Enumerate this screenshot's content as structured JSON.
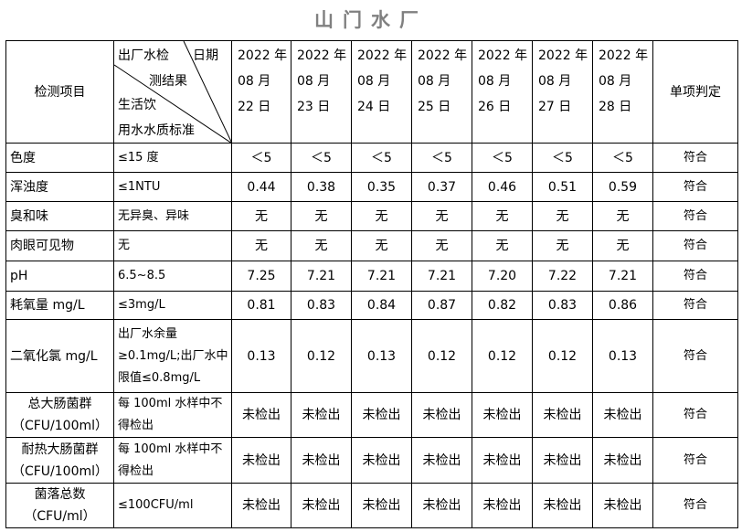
{
  "title": "山门水厂",
  "header": {
    "item_col": "检测项目",
    "diag_top_left": "出厂水检",
    "diag_top_right": "日期",
    "diag_mid": "测结果",
    "diag_bottom1": "生活饮",
    "diag_bottom2": "用水水质标准",
    "dates": [
      {
        "y": "2022 年",
        "m": "08 月",
        "d": "22 日"
      },
      {
        "y": "2022 年",
        "m": "08 月",
        "d": "23 日"
      },
      {
        "y": "2022 年",
        "m": "08 月",
        "d": "24 日"
      },
      {
        "y": "2022 年",
        "m": "08 月",
        "d": "25 日"
      },
      {
        "y": "2022 年",
        "m": "08 月",
        "d": "26 日"
      },
      {
        "y": "2022 年",
        "m": "08 月",
        "d": "27 日"
      },
      {
        "y": "2022 年",
        "m": "08 月",
        "d": "28 日"
      }
    ],
    "verdict_col": "单项判定"
  },
  "rows": [
    {
      "item": "色度",
      "std": "≤15 度",
      "values": [
        "＜5",
        "＜5",
        "＜5",
        "＜5",
        "＜5",
        "＜5",
        "＜5"
      ],
      "verdict": "符合"
    },
    {
      "item": "浑浊度",
      "std": "≤1NTU",
      "values": [
        "0.44",
        "0.38",
        "0.35",
        "0.37",
        "0.46",
        "0.51",
        "0.59"
      ],
      "verdict": "符合"
    },
    {
      "item": "臭和味",
      "std": "无异臭、异味",
      "values": [
        "无",
        "无",
        "无",
        "无",
        "无",
        "无",
        "无"
      ],
      "verdict": "符合"
    },
    {
      "item": "肉眼可见物",
      "std": "无",
      "values": [
        "无",
        "无",
        "无",
        "无",
        "无",
        "无",
        "无"
      ],
      "verdict": "符合"
    },
    {
      "item": "pH",
      "std": "6.5~8.5",
      "values": [
        "7.25",
        "7.21",
        "7.21",
        "7.21",
        "7.20",
        "7.22",
        "7.21"
      ],
      "verdict": "符合"
    },
    {
      "item": "耗氧量 mg/L",
      "std": "≤3mg/L",
      "values": [
        "0.81",
        "0.83",
        "0.84",
        "0.87",
        "0.82",
        "0.83",
        "0.86"
      ],
      "verdict": "符合"
    },
    {
      "item": "二氧化氯 mg/L",
      "std": "出厂水余量≥0.1mg/L;出厂水中限值≤0.8mg/L",
      "values": [
        "0.13",
        "0.12",
        "0.13",
        "0.12",
        "0.12",
        "0.12",
        "0.13"
      ],
      "verdict": "符合"
    },
    {
      "item": "总大肠菌群（CFU/100ml）",
      "std": "每 100ml 水样中不得检出",
      "values": [
        "未检出",
        "未检出",
        "未检出",
        "未检出",
        "未检出",
        "未检出",
        "未检出"
      ],
      "verdict": "符合"
    },
    {
      "item": "耐热大肠菌群（CFU/100ml）",
      "std": "每 100ml 水样中不得检出",
      "values": [
        "未检出",
        "未检出",
        "未检出",
        "未检出",
        "未检出",
        "未检出",
        "未检出"
      ],
      "verdict": "符合"
    },
    {
      "item": "菌落总数（CFU/ml）",
      "std": "≤100CFU/ml",
      "values": [
        "未检出",
        "未检出",
        "未检出",
        "未检出",
        "未检出",
        "未检出",
        "未检出"
      ],
      "verdict": "符合"
    }
  ]
}
